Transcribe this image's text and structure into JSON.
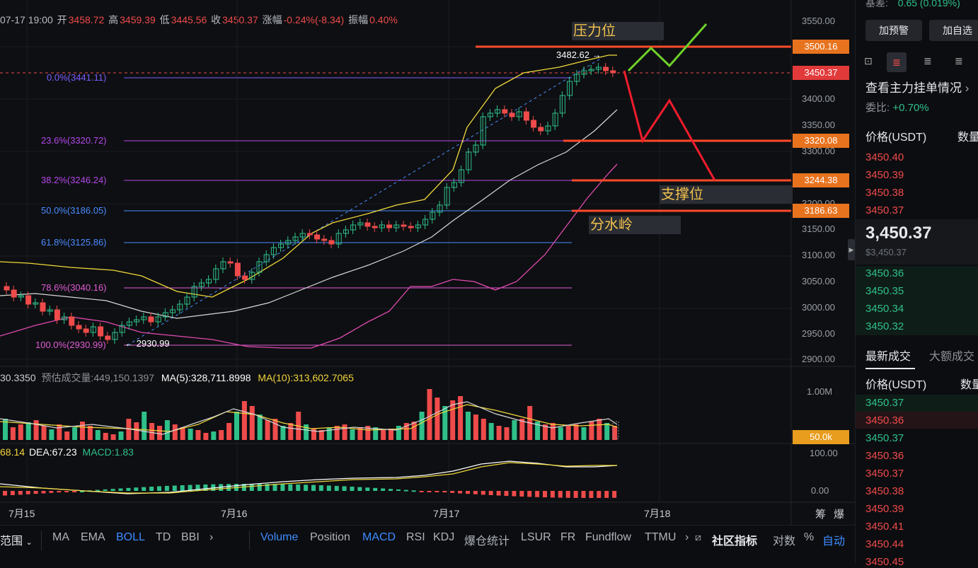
{
  "header": {
    "datetime": "07-17 19:00",
    "open_label": "开",
    "open": "3458.72",
    "high_label": "高",
    "high": "3459.39",
    "low_label": "低",
    "low": "3445.56",
    "close_label": "收",
    "close": "3450.37",
    "change_label": "涨幅",
    "change": "-0.24%(-8.34)",
    "amp_label": "振幅",
    "amp": "0.40%"
  },
  "fib_levels": [
    {
      "label": "0.0%(3441.11)",
      "color": "#7b5cff"
    },
    {
      "label": "23.6%(3320.72)",
      "color": "#b548e8"
    },
    {
      "label": "38.2%(3246.24)",
      "color": "#b548e8"
    },
    {
      "label": "50.0%(3186.05)",
      "color": "#4a8cff"
    },
    {
      "label": "61.8%(3125.86)",
      "color": "#4a8cff"
    },
    {
      "label": "78.6%(3040.16)",
      "color": "#e05cd4"
    },
    {
      "label": "100.0%(2930.99)",
      "color": "#e05cd4"
    }
  ],
  "annotations": {
    "high_mark": "3482.62",
    "low_mark": "2930.99",
    "resistance": "压力位",
    "support": "支撑位",
    "watershed": "分水岭"
  },
  "price_tags": {
    "p3500": "3500.16",
    "current": "3450.37",
    "p3320": "3320.08",
    "p3244": "3244.38",
    "p3186": "3186.63",
    "vol_tag": "50.0k"
  },
  "price_axis": [
    "3550.00",
    "3500.00",
    "3450.00",
    "3400.00",
    "3350.00",
    "3300.00",
    "3250.00",
    "3200.00",
    "3150.00",
    "3100.00",
    "3050.00",
    "3000.00",
    "2950.00",
    "2900.00"
  ],
  "volume": {
    "left": "30.3350",
    "est_label": "预估成交量:449,150.1397",
    "ma5": "MA(5):328,711.8998",
    "ma10": "MA(10):313,602.7065",
    "axis_top": "1.00M"
  },
  "macd": {
    "dif": "68.14",
    "dea": "DEA:67.23",
    "macd": "MACD:1.83",
    "axis_top": "100.00",
    "axis_zero": "0.00"
  },
  "time_axis": {
    "labels": [
      "7月15",
      "7月16",
      "7月17",
      "7月18"
    ],
    "right1": "筹",
    "right2": "爆"
  },
  "bottom_bar": {
    "range_label": "范围",
    "indicators_main": [
      "MA",
      "EMA",
      "BOLL",
      "TD",
      "BBI"
    ],
    "indicators_sub": [
      "Volume",
      "Position",
      "MACD",
      "RSI",
      "KDJ",
      "爆仓统计",
      "LSUR",
      "FR",
      "Fundflow",
      "TTMU"
    ],
    "community": "社区指标",
    "log": "对数",
    "pct": "%",
    "auto": "自动"
  },
  "right_panel": {
    "basis_label": "基差:",
    "basis_value": "0.65 (0.019%)",
    "alert_btn": "加预警",
    "watch_btn": "加自选",
    "orders_title": "查看主力挂单情况",
    "ratio_label": "委比:",
    "ratio_value": "+0.70%",
    "col_price": "价格(USDT)",
    "col_qty": "数量",
    "asks": [
      "3450.40",
      "3450.39",
      "3450.38",
      "3450.37"
    ],
    "mid_price": "3,450.37",
    "mid_sub": "$3,450.37",
    "bids": [
      "3450.36",
      "3450.35",
      "3450.34",
      "3450.32"
    ],
    "tab_latest": "最新成交",
    "tab_large": "大额成交",
    "trades": [
      {
        "p": "3450.37",
        "c": "#2fc08a"
      },
      {
        "p": "3450.36",
        "c": "#ef4b4b"
      },
      {
        "p": "3450.37",
        "c": "#2fc08a"
      },
      {
        "p": "3450.36",
        "c": "#ef4b4b"
      },
      {
        "p": "3450.37",
        "c": "#ef4b4b"
      },
      {
        "p": "3450.38",
        "c": "#ef4b4b"
      },
      {
        "p": "3450.39",
        "c": "#ef4b4b"
      },
      {
        "p": "3450.41",
        "c": "#ef4b4b"
      },
      {
        "p": "3450.44",
        "c": "#ef4b4b"
      },
      {
        "p": "3450.45",
        "c": "#ef4b4b"
      }
    ]
  }
}
